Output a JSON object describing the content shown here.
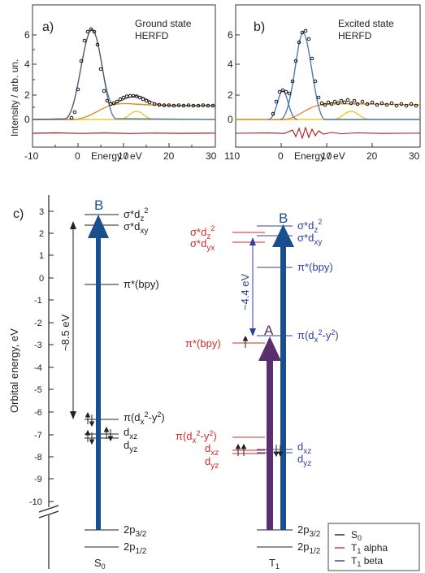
{
  "panel_a": {
    "label": "a)",
    "title_line1": "Ground state",
    "title_line2": "HERFD",
    "ylabel": "Intensity / arb. un.",
    "xlabel": "Energy / eV",
    "x_ticks": [
      "-10",
      "0",
      "10",
      "20",
      "30"
    ],
    "y_ticks": [
      "0",
      "2",
      "4",
      "6"
    ]
  },
  "panel_b": {
    "label": "b)",
    "title_line1": "Excited state",
    "title_line2": "HERFD",
    "xlabel": "Energy / eV",
    "x_ticks": [
      "110",
      "0",
      "10",
      "20",
      "30"
    ],
    "y_ticks": [
      "0",
      "2",
      "4",
      "6"
    ]
  },
  "panel_c": {
    "label": "c)",
    "ylabel": "Orbital energy, eV",
    "y_ticks": [
      "3",
      "2",
      "1",
      "0",
      "-1",
      "-2",
      "-3",
      "-4",
      "-5",
      "-6",
      "-7",
      "-8",
      "-9",
      "-10"
    ],
    "s0": {
      "column_label_main": "S",
      "column_label_sub": "0",
      "arrow_label": "B",
      "gap_label": "~8.5 eV",
      "levels": {
        "sdz2_main": "σ*d",
        "sdz2_sub": "z",
        "sdz2_sup": "2",
        "sdxy_main": "σ*d",
        "sdxy_sub": "xy",
        "pibpy": "π*(bpy)",
        "pidx_main": "π(d",
        "pidx_sub": "x",
        "pidx_sup": "2",
        "pidx_mid": "-y",
        "pidx_sup2": "2",
        "pidx_end": ")",
        "dxz_main": "d",
        "dxz_sub": "xz",
        "dyz_main": "d",
        "dyz_sub": "yz",
        "p32_main": "2p",
        "p32_sub": "3/2",
        "p12_main": "2p",
        "p12_sub": "1/2"
      }
    },
    "t1": {
      "column_label_main": "T",
      "column_label_sub": "1",
      "arrow_b_label": "B",
      "arrow_a_label": "A",
      "gap_label": "~4.4 eV",
      "alpha_levels": {
        "sdz2_main": "σ*d",
        "sdz2_sub": "z",
        "sdz2_sup": "2",
        "sdyx_main": "σ*d",
        "sdyx_sub": "yx",
        "pibpy": "π*(bpy)",
        "pidx_main": "π(d",
        "pidx_sub": "x",
        "pidx_sup": "2",
        "pidx_mid": "-y",
        "pidx_sup2": "2",
        "pidx_end": ")",
        "dxz_main": "d",
        "dxz_sub": "xz",
        "dyz_main": "d",
        "dyz_sub": "yz"
      },
      "beta_levels": {
        "sdz2_main": "σ*d",
        "sdz2_sub": "z",
        "sdz2_sup": "2",
        "sdxy_main": "σ*d",
        "sdxy_sub": "xy",
        "pibpy": "π*(bpy)",
        "pidx_main": "π(d",
        "pidx_sub": "x",
        "pidx_sup": "2",
        "pidx_mid": "-y",
        "pidx_sup2": "2",
        "pidx_end": ")",
        "dxz_main": "d",
        "dxz_sub": "xz",
        "dyz_main": "d",
        "dyz_sub": "yz"
      },
      "core_levels": {
        "p32_main": "2p",
        "p32_sub": "3/2",
        "p12_main": "2p",
        "p12_sub": "1/2"
      }
    },
    "legend": [
      {
        "main": "S",
        "sub": "0",
        "rest": "",
        "color": "#222222"
      },
      {
        "main": "T",
        "sub": "1",
        "rest": " alpha",
        "color": "#d42a2a"
      },
      {
        "main": "T",
        "sub": "1",
        "rest": " beta",
        "color": "#2e3f9e"
      }
    ]
  },
  "colors": {
    "fit_blue": "#4a7ab8",
    "fit_orange": "#e08a2a",
    "fit_yellow": "#e8c830",
    "residual_red": "#b01818",
    "alpha_red": "#d42a2a",
    "beta_blue": "#2e3f9e",
    "arrow_blue": "#1a4f8f",
    "arrow_purple": "#5a2f6e"
  }
}
